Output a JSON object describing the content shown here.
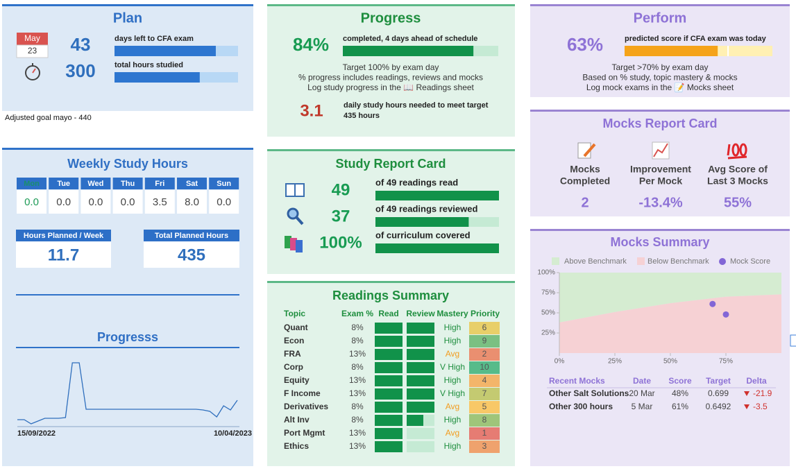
{
  "plan": {
    "title": "Plan",
    "month": "May",
    "day": 23,
    "days_left": 43,
    "days_left_label": "days left to CFA exam",
    "days_bar": 0.82,
    "hours": 300,
    "hours_label": "total hours studied",
    "hours_bar": 0.69
  },
  "adjusted_goal": "Adjusted goal mayo - 440",
  "weekly": {
    "title": "Weekly Study Hours",
    "days": [
      "Mon",
      "Tue",
      "Wed",
      "Thu",
      "Fri",
      "Sat",
      "Sun"
    ],
    "hours": [
      "0.0",
      "0.0",
      "0.0",
      "0.0",
      "3.5",
      "8.0",
      "0.0"
    ],
    "planned_label": "Hours Planned / Week",
    "planned": 11.7,
    "total_label": "Total Planned Hours",
    "total": 435
  },
  "progress": {
    "title": "Progress",
    "pct": "84%",
    "pct_label": "completed, 4 days ahead of schedule",
    "bar": 0.84,
    "notes": [
      "Target 100% by exam day",
      "% progress includes readings, reviews and mocks",
      "Log study progress in the 📖 Readings sheet"
    ],
    "daily": 3.1,
    "daily_label": [
      "daily study hours needed to meet target",
      "435 hours"
    ]
  },
  "study_card": {
    "title": "Study Report Card",
    "rows": [
      {
        "value": 49,
        "label": "of 49 readings read",
        "bar": 1
      },
      {
        "value": 37,
        "label": "of 49 readings reviewed",
        "bar": 0.755
      },
      {
        "value": "100%",
        "label": "of curriculum covered",
        "bar": 1
      }
    ]
  },
  "readings": {
    "title": "Readings Summary",
    "columns": [
      "Topic",
      "Exam %",
      "Read",
      "Review",
      "Mastery",
      "Priority"
    ],
    "mastery_colors": {
      "High": "#1e8e3e",
      "V High": "#1e8e3e",
      "Avg": "#f29c1f"
    },
    "rows": [
      {
        "topic": "Quant",
        "exam": "8%",
        "read": 1,
        "review": 1,
        "mastery": "High",
        "priority": 6
      },
      {
        "topic": "Econ",
        "exam": "8%",
        "read": 1,
        "review": 1,
        "mastery": "High",
        "priority": 9
      },
      {
        "topic": "FRA",
        "exam": "13%",
        "read": 1,
        "review": 1,
        "mastery": "Avg",
        "priority": 2
      },
      {
        "topic": "Corp",
        "exam": "8%",
        "read": 1,
        "review": 1,
        "mastery": "V High",
        "priority": 10
      },
      {
        "topic": "Equity",
        "exam": "13%",
        "read": 1,
        "review": 1,
        "mastery": "High",
        "priority": 4
      },
      {
        "topic": "F Income",
        "exam": "13%",
        "read": 1,
        "review": 1,
        "mastery": "V High",
        "priority": 7
      },
      {
        "topic": "Derivatives",
        "exam": "8%",
        "read": 1,
        "review": 1,
        "mastery": "Avg",
        "priority": 5
      },
      {
        "topic": "Alt Inv",
        "exam": "8%",
        "read": 1,
        "review": 0.6,
        "mastery": "High",
        "priority": 8
      },
      {
        "topic": "Port Mgmt",
        "exam": "13%",
        "read": 1,
        "review": 0,
        "mastery": "Avg",
        "priority": 1
      },
      {
        "topic": "Ethics",
        "exam": "13%",
        "read": 1,
        "review": 0,
        "mastery": "High",
        "priority": 3
      }
    ]
  },
  "perform": {
    "title": "Perform",
    "pct": "63%",
    "pct_label": "predicted score if CFA exam was today",
    "bar": 0.63,
    "target_mark": 0.7,
    "notes": [
      "Target >70% by exam day",
      "Based on % study, topic mastery & mocks",
      "Log mock exams in the 📝 Mocks sheet"
    ]
  },
  "mocks_card": {
    "title": "Mocks Report Card",
    "items": [
      {
        "label": [
          "Mocks",
          "Completed"
        ],
        "value": 2
      },
      {
        "label": [
          "Improvement",
          "Per Mock"
        ],
        "value": "-13.4%"
      },
      {
        "label": [
          "Avg Score of",
          "Last 3 Mocks"
        ],
        "value": "55%"
      }
    ]
  },
  "mocks_table": {
    "columns": [
      "Recent Mocks",
      "Date",
      "Score",
      "Target",
      "Delta"
    ],
    "rows": [
      [
        "Other Salt Solutions",
        "20 Mar",
        "48%",
        "0.699",
        "-21.9"
      ],
      [
        "Other 300 hours",
        "5 Mar",
        "61%",
        "0.6492",
        "-3.5"
      ]
    ]
  },
  "chart_data": [
    {
      "type": "line",
      "title": "Progresss",
      "color": "#2f6fbd",
      "categories": [
        "15/09/2022",
        null,
        null,
        null,
        null,
        null,
        null,
        null,
        null,
        null,
        null,
        null,
        null,
        null,
        null,
        null,
        null,
        null,
        null,
        null,
        null,
        null,
        null,
        null,
        null,
        null,
        null,
        null,
        null,
        null,
        null,
        null,
        "10/04/2023"
      ],
      "values": [
        1,
        1,
        0.4,
        0.8,
        1.2,
        1.2,
        1.2,
        1.3,
        9.2,
        9.2,
        2.5,
        2.5,
        2.5,
        2.5,
        2.5,
        2.5,
        2.5,
        2.5,
        2.5,
        2.5,
        2.5,
        2.5,
        2.5,
        2.5,
        2.5,
        2.5,
        2.5,
        2.4,
        2.2,
        1.4,
        3.0,
        2.4,
        3.8
      ]
    },
    {
      "type": "scatter",
      "title": "Mocks Summary",
      "areas": [
        {
          "name": "Above Benchmark",
          "color": "#d5ecd1"
        },
        {
          "name": "Below Benchmark",
          "color": "#f6d1d4"
        }
      ],
      "benchmark": {
        "x": [
          0,
          25,
          50,
          75,
          100
        ],
        "values": [
          38,
          51,
          62,
          70,
          73
        ]
      },
      "series": [
        {
          "name": "Mock Score",
          "color": "#8266d6",
          "x": [
            69,
            75
          ],
          "values": [
            61,
            48
          ]
        }
      ],
      "xlim": [
        0,
        100
      ],
      "ylim": [
        0,
        100
      ],
      "xticks": [
        {
          "value": 0,
          "label": "0%"
        },
        {
          "value": 25,
          "label": "25%"
        },
        {
          "value": 50,
          "label": "50%"
        },
        {
          "value": 75,
          "label": "75%"
        }
      ],
      "yticks": [
        {
          "value": 25,
          "label": "25%"
        },
        {
          "value": 50,
          "label": "50%"
        },
        {
          "value": 75,
          "label": "75%"
        },
        {
          "value": 100,
          "label": "100%"
        }
      ]
    }
  ]
}
